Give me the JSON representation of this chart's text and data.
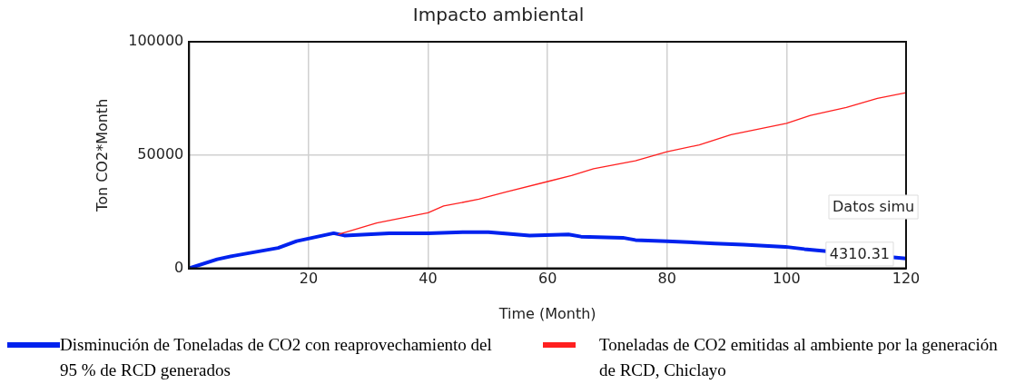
{
  "chart_data": {
    "type": "line",
    "title": "Impacto ambiental",
    "xlabel": "Time (Month)",
    "ylabel": "Ton CO2*Month",
    "xlim": [
      0,
      120
    ],
    "xticks": [
      20,
      40,
      60,
      80,
      100,
      120
    ],
    "ylim": [
      0,
      100000
    ],
    "yticks": [
      0,
      50000,
      100000
    ],
    "grid": true,
    "legend": "bottom",
    "marker": "none",
    "line_style": "solid",
    "series": [
      {
        "name": "Disminución de Toneladas de CO2 con reaprovechamiento del 95 % de RCD generados",
        "color": "#0022ee",
        "x": [
          0,
          4.7,
          7.4,
          14.9,
          18,
          24.2,
          26,
          33.5,
          40,
          45.8,
          50.1,
          57,
          63.5,
          65.6,
          72.6,
          74.7,
          80,
          88,
          92.8,
          99.8,
          103,
          120
        ],
        "values": [
          0,
          4000,
          5500,
          9000,
          12000,
          15500,
          14500,
          15500,
          15500,
          16000,
          16000,
          14500,
          15000,
          14000,
          13500,
          12500,
          12000,
          11000,
          10500,
          9500,
          8500,
          4310.31
        ]
      },
      {
        "name": "Toneladas de CO2 emitidas al ambiente por la generación de RCD, Chiclayo",
        "color": "#ff2020",
        "x": [
          25,
          31.4,
          40,
          42.6,
          48.5,
          52.8,
          60.3,
          64,
          67.7,
          74.7,
          80,
          85.4,
          90.7,
          100,
          104,
          110,
          115.2,
          120
        ],
        "values": [
          15000,
          20000,
          24500,
          27500,
          30500,
          33500,
          38500,
          41000,
          44000,
          47500,
          51500,
          54500,
          59000,
          64000,
          67500,
          71000,
          75000,
          77500
        ]
      }
    ],
    "annotations": [
      "Datos simu",
      {
        "text": "4310.31",
        "x": 120,
        "y": 4310.31
      }
    ]
  }
}
